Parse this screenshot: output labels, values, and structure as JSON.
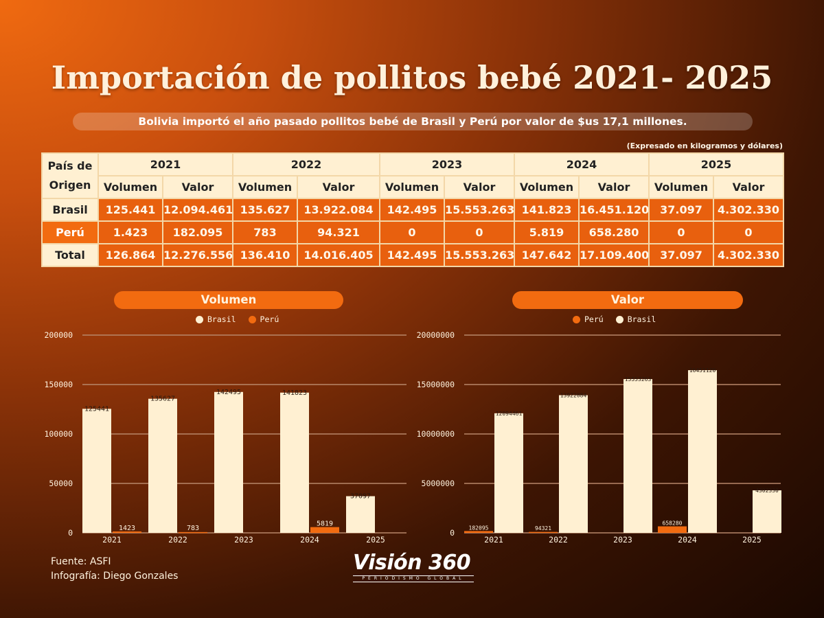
{
  "header": {
    "title": "Importación de pollitos bebé 2021- 2025",
    "subtitle": "Bolivia importó el año pasado pollitos bebé de Brasil y Perú por valor de $us 17,1 millones.",
    "unit_note": "(Expresado en kilogramos y dólares)"
  },
  "table": {
    "origin_label_1": "País de",
    "origin_label_2": "Origen",
    "years": [
      "2021",
      "2022",
      "2023",
      "2024",
      "2025"
    ],
    "volume_label": "Volumen",
    "value_label": "Valor",
    "rows": [
      {
        "label": "Brasil",
        "cells": [
          "125.441",
          "12.094.461",
          "135.627",
          "13.922.084",
          "142.495",
          "15.553.263",
          "141.823",
          "16.451.120",
          "37.097",
          "4.302.330"
        ]
      },
      {
        "label": "Perú",
        "cells": [
          "1.423",
          "182.095",
          "783",
          "94.321",
          "0",
          "0",
          "5.819",
          "658.280",
          "0",
          "0"
        ]
      },
      {
        "label": "Total",
        "cells": [
          "126.864",
          "12.276.556",
          "136.410",
          "14.016.405",
          "142.495",
          "15.553.263",
          "147.642",
          "17.109.400",
          "37.097",
          "4.302.330"
        ]
      }
    ]
  },
  "colors": {
    "brasil": "#fff0d2",
    "peru": "#f26b10",
    "grid": "#b8876a",
    "axis_text": "#fff3df"
  },
  "chart_data": [
    {
      "type": "bar",
      "title": "Volumen",
      "categories": [
        "2021",
        "2022",
        "2023",
        "2024",
        "2025"
      ],
      "legend_order": [
        "Brasil",
        "Perú"
      ],
      "series": [
        {
          "name": "Brasil",
          "values": [
            125441,
            135627,
            142495,
            141823,
            37097
          ]
        },
        {
          "name": "Perú",
          "values": [
            1423,
            783,
            0,
            5819,
            0
          ]
        }
      ],
      "data_labels": {
        "Brasil": [
          "125441",
          "135627",
          "142495",
          "141823",
          "37097"
        ],
        "Perú": [
          "1423",
          "783",
          "",
          "5819",
          ""
        ]
      },
      "yticks": [
        "0",
        "50000",
        "100000",
        "150000",
        "200000"
      ],
      "ylim": [
        0,
        200000
      ],
      "grid": true,
      "legend_position": "top-center"
    },
    {
      "type": "bar",
      "title": "Valor",
      "categories": [
        "2021",
        "2022",
        "2023",
        "2024",
        "2025"
      ],
      "legend_order": [
        "Perú",
        "Brasil"
      ],
      "series": [
        {
          "name": "Brasil",
          "values": [
            12094461,
            13922084,
            15553263,
            16451120,
            4302330
          ]
        },
        {
          "name": "Perú",
          "values": [
            182095,
            94321,
            0,
            658280,
            0
          ]
        }
      ],
      "data_labels": {
        "Brasil": [
          "12094461",
          "13922084",
          "15553263",
          "16451120",
          "4302330"
        ],
        "Perú": [
          "182095",
          "94321",
          "",
          "658280",
          ""
        ]
      },
      "yticks": [
        "0",
        "5000000",
        "10000000",
        "15000000",
        "20000000"
      ],
      "ylim": [
        0,
        20000000
      ],
      "grid": true,
      "legend_position": "top-center"
    }
  ],
  "footer": {
    "source": "Fuente: ASFI",
    "credit": "Infografía: Diego Gonzales"
  },
  "logo": {
    "name": "Visión 360",
    "tagline": "PERIODISMO GLOBAL"
  }
}
